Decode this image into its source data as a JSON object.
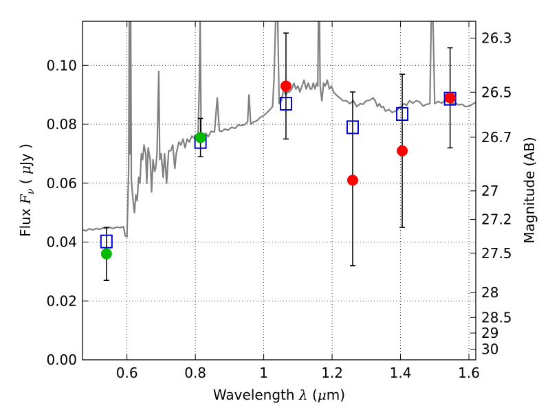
{
  "chart_data": {
    "type": "scatter",
    "xlabel": {
      "prefix": "Wavelength  ",
      "symbol": "λ",
      "unit": " (",
      "mu": "μ",
      "unit_end": "m)"
    },
    "ylabel": {
      "prefix": "Flux  ",
      "symbol": "F",
      "sub": "ν",
      "unit": "  ( ",
      "mu": "μ",
      "unit_end": "Jy )"
    },
    "y2label": "Magnitude (AB)",
    "xlim": [
      0.47,
      1.62
    ],
    "ylim": [
      0.0,
      0.115
    ],
    "grid": true,
    "x_ticks": [
      {
        "value": 0.6,
        "label": "0.6"
      },
      {
        "value": 0.8,
        "label": "0.8"
      },
      {
        "value": 1.0,
        "label": "1"
      },
      {
        "value": 1.2,
        "label": "1.2"
      },
      {
        "value": 1.4,
        "label": "1.4"
      },
      {
        "value": 1.6,
        "label": "1.6"
      }
    ],
    "y_ticks": [
      {
        "value": 0.0,
        "label": "0.00"
      },
      {
        "value": 0.02,
        "label": "0.02"
      },
      {
        "value": 0.04,
        "label": "0.04"
      },
      {
        "value": 0.06,
        "label": "0.06"
      },
      {
        "value": 0.08,
        "label": "0.08"
      },
      {
        "value": 0.1,
        "label": "0.10"
      }
    ],
    "y2_ticks": [
      {
        "label": "26.3",
        "flux": 0.1093
      },
      {
        "label": "26.5",
        "flux": 0.0909
      },
      {
        "label": "26.7",
        "flux": 0.0756
      },
      {
        "label": "27",
        "flux": 0.0574
      },
      {
        "label": "27.2",
        "flux": 0.0477
      },
      {
        "label": "27.5",
        "flux": 0.0362
      },
      {
        "label": "28",
        "flux": 0.0229
      },
      {
        "label": "28.5",
        "flux": 0.0144
      },
      {
        "label": "29",
        "flux": 0.0091
      },
      {
        "label": "30",
        "flux": 0.0036
      }
    ],
    "series": [
      {
        "name": "template spectrum",
        "kind": "line",
        "color": "#808080",
        "points": [
          [
            0.47,
            0.0442
          ],
          [
            0.48,
            0.0438
          ],
          [
            0.49,
            0.0445
          ],
          [
            0.5,
            0.0441
          ],
          [
            0.51,
            0.0446
          ],
          [
            0.52,
            0.0443
          ],
          [
            0.53,
            0.0448
          ],
          [
            0.54,
            0.0446
          ],
          [
            0.55,
            0.045
          ],
          [
            0.56,
            0.0446
          ],
          [
            0.57,
            0.0451
          ],
          [
            0.58,
            0.0449
          ],
          [
            0.59,
            0.0452
          ],
          [
            0.595,
            0.0421
          ],
          [
            0.6,
            0.0418
          ],
          [
            0.603,
            0.056
          ],
          [
            0.605,
            0.064
          ],
          [
            0.607,
            0.116
          ],
          [
            0.609,
            0.07
          ],
          [
            0.611,
            0.116
          ],
          [
            0.613,
            0.061
          ],
          [
            0.618,
            0.054
          ],
          [
            0.622,
            0.05
          ],
          [
            0.626,
            0.056
          ],
          [
            0.63,
            0.054
          ],
          [
            0.634,
            0.062
          ],
          [
            0.638,
            0.06
          ],
          [
            0.642,
            0.07
          ],
          [
            0.646,
            0.068
          ],
          [
            0.65,
            0.073
          ],
          [
            0.655,
            0.07
          ],
          [
            0.658,
            0.06
          ],
          [
            0.662,
            0.072
          ],
          [
            0.668,
            0.068
          ],
          [
            0.672,
            0.057
          ],
          [
            0.676,
            0.068
          ],
          [
            0.681,
            0.064
          ],
          [
            0.684,
            0.065
          ],
          [
            0.688,
            0.07
          ],
          [
            0.693,
            0.098
          ],
          [
            0.696,
            0.068
          ],
          [
            0.7,
            0.07
          ],
          [
            0.706,
            0.062
          ],
          [
            0.71,
            0.07
          ],
          [
            0.716,
            0.06
          ],
          [
            0.722,
            0.071
          ],
          [
            0.728,
            0.071
          ],
          [
            0.734,
            0.073
          ],
          [
            0.74,
            0.065
          ],
          [
            0.744,
            0.07
          ],
          [
            0.748,
            0.072
          ],
          [
            0.752,
            0.074
          ],
          [
            0.758,
            0.073
          ],
          [
            0.764,
            0.075
          ],
          [
            0.77,
            0.072
          ],
          [
            0.776,
            0.075
          ],
          [
            0.782,
            0.074
          ],
          [
            0.79,
            0.076
          ],
          [
            0.8,
            0.075
          ],
          [
            0.808,
            0.076
          ],
          [
            0.812,
            0.096
          ],
          [
            0.814,
            0.116
          ],
          [
            0.817,
            0.076
          ],
          [
            0.822,
            0.0762
          ],
          [
            0.83,
            0.077
          ],
          [
            0.838,
            0.0758
          ],
          [
            0.846,
            0.0776
          ],
          [
            0.856,
            0.0774
          ],
          [
            0.864,
            0.089
          ],
          [
            0.87,
            0.0778
          ],
          [
            0.878,
            0.0776
          ],
          [
            0.886,
            0.0784
          ],
          [
            0.896,
            0.078
          ],
          [
            0.906,
            0.079
          ],
          [
            0.916,
            0.0786
          ],
          [
            0.926,
            0.0798
          ],
          [
            0.936,
            0.0796
          ],
          [
            0.946,
            0.08
          ],
          [
            0.953,
            0.081
          ],
          [
            0.957,
            0.09
          ],
          [
            0.962,
            0.08
          ],
          [
            0.97,
            0.0808
          ],
          [
            0.98,
            0.0812
          ],
          [
            0.99,
            0.0824
          ],
          [
            1.0,
            0.083
          ],
          [
            1.01,
            0.084
          ],
          [
            1.018,
            0.085
          ],
          [
            1.026,
            0.086
          ],
          [
            1.03,
            0.095
          ],
          [
            1.035,
            0.116
          ],
          [
            1.041,
            0.116
          ],
          [
            1.045,
            0.087
          ],
          [
            1.052,
            0.088
          ],
          [
            1.058,
            0.092
          ],
          [
            1.064,
            0.09
          ],
          [
            1.07,
            0.091
          ],
          [
            1.076,
            0.091
          ],
          [
            1.082,
            0.092
          ],
          [
            1.088,
            0.094
          ],
          [
            1.094,
            0.092
          ],
          [
            1.1,
            0.093
          ],
          [
            1.106,
            0.091
          ],
          [
            1.112,
            0.093
          ],
          [
            1.118,
            0.095
          ],
          [
            1.124,
            0.092
          ],
          [
            1.13,
            0.094
          ],
          [
            1.136,
            0.092
          ],
          [
            1.14,
            0.092
          ],
          [
            1.145,
            0.094
          ],
          [
            1.15,
            0.092
          ],
          [
            1.155,
            0.094
          ],
          [
            1.158,
            0.093
          ],
          [
            1.16,
            0.116
          ],
          [
            1.163,
            0.116
          ],
          [
            1.165,
            0.093
          ],
          [
            1.17,
            0.088
          ],
          [
            1.175,
            0.094
          ],
          [
            1.18,
            0.093
          ],
          [
            1.186,
            0.095
          ],
          [
            1.192,
            0.092
          ],
          [
            1.198,
            0.093
          ],
          [
            1.204,
            0.091
          ],
          [
            1.212,
            0.09
          ],
          [
            1.222,
            0.089
          ],
          [
            1.232,
            0.088
          ],
          [
            1.242,
            0.088
          ],
          [
            1.252,
            0.087
          ],
          [
            1.262,
            0.088
          ],
          [
            1.272,
            0.086
          ],
          [
            1.282,
            0.087
          ],
          [
            1.29,
            0.0868
          ],
          [
            1.3,
            0.088
          ],
          [
            1.31,
            0.0882
          ],
          [
            1.32,
            0.089
          ],
          [
            1.326,
            0.088
          ],
          [
            1.332,
            0.086
          ],
          [
            1.338,
            0.087
          ],
          [
            1.344,
            0.0858
          ],
          [
            1.35,
            0.086
          ],
          [
            1.356,
            0.0845
          ],
          [
            1.366,
            0.085
          ],
          [
            1.376,
            0.084
          ],
          [
            1.384,
            0.0845
          ],
          [
            1.392,
            0.085
          ],
          [
            1.398,
            0.086
          ],
          [
            1.402,
            0.086
          ],
          [
            1.41,
            0.087
          ],
          [
            1.418,
            0.0865
          ],
          [
            1.426,
            0.088
          ],
          [
            1.436,
            0.0872
          ],
          [
            1.446,
            0.088
          ],
          [
            1.456,
            0.0876
          ],
          [
            1.466,
            0.0862
          ],
          [
            1.476,
            0.0868
          ],
          [
            1.486,
            0.087
          ],
          [
            1.49,
            0.116
          ],
          [
            1.495,
            0.116
          ],
          [
            1.5,
            0.087
          ],
          [
            1.51,
            0.0878
          ],
          [
            1.52,
            0.0872
          ],
          [
            1.53,
            0.088
          ],
          [
            1.54,
            0.0876
          ],
          [
            1.55,
            0.087
          ],
          [
            1.56,
            0.0872
          ],
          [
            1.57,
            0.0866
          ],
          [
            1.58,
            0.0868
          ],
          [
            1.59,
            0.086
          ],
          [
            1.6,
            0.0862
          ],
          [
            1.61,
            0.0868
          ],
          [
            1.62,
            0.0874
          ]
        ]
      },
      {
        "name": "photometry with errors",
        "kind": "errorbar",
        "color": "#000000",
        "points": [
          {
            "x": 0.54,
            "y": 0.036,
            "yerr": [
              0.027,
              0.045
            ]
          },
          {
            "x": 0.815,
            "y": 0.0755,
            "yerr": [
              0.069,
              0.082
            ]
          },
          {
            "x": 1.065,
            "y": 0.093,
            "yerr": [
              0.075,
              0.111
            ]
          },
          {
            "x": 1.26,
            "y": 0.061,
            "yerr": [
              0.032,
              0.091
            ]
          },
          {
            "x": 1.405,
            "y": 0.071,
            "yerr": [
              0.045,
              0.097
            ]
          },
          {
            "x": 1.545,
            "y": 0.089,
            "yerr": [
              0.072,
              0.106
            ]
          }
        ]
      },
      {
        "name": "model (squares)",
        "kind": "square",
        "color": "#0000cc",
        "points": [
          [
            0.54,
            0.0402
          ],
          [
            0.815,
            0.074
          ],
          [
            1.065,
            0.087
          ],
          [
            1.26,
            0.079
          ],
          [
            1.405,
            0.0835
          ],
          [
            1.545,
            0.0887
          ]
        ]
      },
      {
        "name": "detections (green)",
        "kind": "circle",
        "color": "#00bb00",
        "points": [
          [
            0.54,
            0.036
          ],
          [
            0.815,
            0.0755
          ]
        ]
      },
      {
        "name": "detections (red)",
        "kind": "circle",
        "color": "#ff0000",
        "points": [
          [
            1.065,
            0.093
          ],
          [
            1.26,
            0.061
          ],
          [
            1.405,
            0.071
          ],
          [
            1.545,
            0.089
          ]
        ]
      }
    ]
  }
}
